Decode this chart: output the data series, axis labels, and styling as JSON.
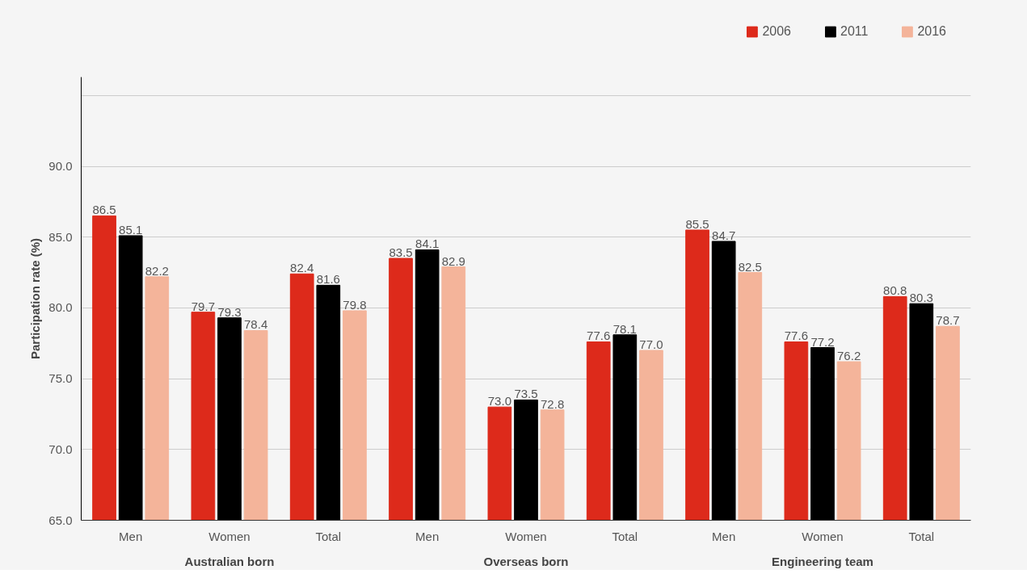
{
  "chart_data": {
    "type": "bar",
    "ylabel": "Participation rate (%)",
    "categories": [
      "Men",
      "Women",
      "Total",
      "Men",
      "Women",
      "Total",
      "Men",
      "Women",
      "Total"
    ],
    "annotations": [
      "Australian born",
      "Overseas born",
      "Engineering team"
    ],
    "series": [
      {
        "name": "2006",
        "color": "#dd2a1b",
        "values": [
          86.5,
          79.7,
          82.4,
          83.5,
          73.0,
          77.6,
          85.5,
          77.6,
          80.8
        ],
        "value_labels": [
          "86.5",
          "79.7",
          "82.4",
          "83.5",
          "73.0",
          "77.6",
          "85.5",
          "77.6",
          "80.8"
        ]
      },
      {
        "name": "2011",
        "color": "#000000",
        "values": [
          85.1,
          79.3,
          81.6,
          84.1,
          73.5,
          78.1,
          84.7,
          77.2,
          80.3
        ],
        "value_labels": [
          "85.1",
          "79.3",
          "81.6",
          "84.1",
          "73.5",
          "78.1",
          "84.7",
          "77.2",
          "80.3"
        ]
      },
      {
        "name": "2016",
        "color": "#f4b49a",
        "values": [
          82.2,
          78.4,
          79.8,
          82.9,
          72.8,
          77.0,
          82.5,
          76.2,
          78.7
        ],
        "value_labels": [
          "82.2",
          "78.4",
          "79.8",
          "82.9",
          "72.8",
          "77.0",
          "82.5",
          "76.2",
          "78.7"
        ]
      }
    ],
    "ylim": [
      65,
      96.3
    ],
    "yticks": [
      {
        "value": 65,
        "label": "65.0"
      },
      {
        "value": 70,
        "label": "70.0"
      },
      {
        "value": 75,
        "label": "75.0"
      },
      {
        "value": 80,
        "label": "80.0"
      },
      {
        "value": 85,
        "label": "85.0"
      },
      {
        "value": 90,
        "label": "90.0"
      },
      {
        "value": 95,
        "label": null
      }
    ],
    "grid": "y",
    "legend": "top right"
  }
}
